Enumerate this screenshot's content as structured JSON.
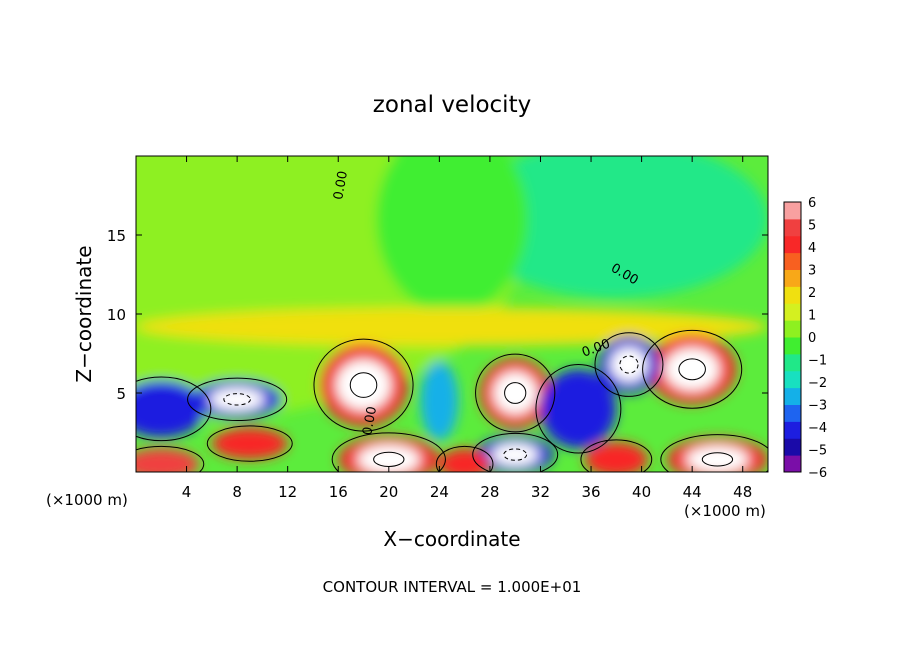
{
  "chart_data": {
    "type": "heatmap",
    "title": "zonal velocity",
    "xlabel": "X−coordinate",
    "ylabel": "Z−coordinate",
    "x_unit_left": "(×1000 m)",
    "x_unit_right": "(×1000 m)",
    "footer": "CONTOUR INTERVAL = 1.000E+01",
    "xlim": [
      0,
      50
    ],
    "ylim": [
      0,
      20
    ],
    "x_ticks": [
      4,
      8,
      12,
      16,
      20,
      24,
      28,
      32,
      36,
      40,
      44,
      48
    ],
    "y_ticks": [
      5,
      10,
      15
    ],
    "colorbar": {
      "min": -6,
      "max": 6,
      "ticks": [
        6,
        5,
        4,
        3,
        2,
        1,
        0,
        -1,
        -2,
        -3,
        -4,
        -5,
        -6
      ],
      "colors": [
        "#7a0ea8",
        "#1a0aa8",
        "#1d1ee0",
        "#1e64f0",
        "#14b0e8",
        "#18e0c0",
        "#20e888",
        "#40ee30",
        "#8ef020",
        "#d4f020",
        "#f0e010",
        "#f8a818",
        "#f86020",
        "#f82828",
        "#f04040",
        "#f8a0a0"
      ]
    },
    "contour_labels": [
      "0.00",
      "0.00",
      "0.00",
      "0.00",
      "0.00"
    ],
    "regions": [
      {
        "x": 0,
        "z": 13,
        "rx": 30,
        "rz": 10,
        "value": 0.6
      },
      {
        "x": 38,
        "z": 16,
        "rx": 12,
        "rz": 5,
        "value": -1.0
      },
      {
        "x": 25,
        "z": 16,
        "rx": 6,
        "rz": 6,
        "value": -0.5
      },
      {
        "x": 25,
        "z": 9.2,
        "rx": 25,
        "rz": 1.2,
        "value": 1.8
      },
      {
        "x": 18,
        "z": 5.5,
        "rx": 3.5,
        "rz": 2.6,
        "value": 8
      },
      {
        "x": 30,
        "z": 5,
        "rx": 2.8,
        "rz": 2.2,
        "value": 8
      },
      {
        "x": 44,
        "z": 6.5,
        "rx": 3.5,
        "rz": 2.2,
        "value": 8
      },
      {
        "x": 8,
        "z": 4.6,
        "rx": 3.5,
        "rz": 1.2,
        "value": -8
      },
      {
        "x": 39,
        "z": 6.8,
        "rx": 2.4,
        "rz": 1.8,
        "value": -8
      },
      {
        "x": 2,
        "z": 4,
        "rx": 3.5,
        "rz": 1.8,
        "value": -4
      },
      {
        "x": 35,
        "z": 4,
        "rx": 3,
        "rz": 2.5,
        "value": -4
      },
      {
        "x": 24,
        "z": 4.5,
        "rx": 1.5,
        "rz": 2.5,
        "value": -2.5
      },
      {
        "x": 20,
        "z": 0.8,
        "rx": 4,
        "rz": 1.5,
        "value": 7
      },
      {
        "x": 46,
        "z": 0.8,
        "rx": 4,
        "rz": 1.4,
        "value": 7
      },
      {
        "x": 30,
        "z": 1.1,
        "rx": 3,
        "rz": 1.2,
        "value": -7
      },
      {
        "x": 38,
        "z": 0.8,
        "rx": 2.5,
        "rz": 1.1,
        "value": 4
      },
      {
        "x": 26,
        "z": 0.5,
        "rx": 2,
        "rz": 1,
        "value": 4
      },
      {
        "x": 2,
        "z": 0.5,
        "rx": 3,
        "rz": 1,
        "value": 5
      },
      {
        "x": 9,
        "z": 1.8,
        "rx": 3,
        "rz": 1,
        "value": 4
      }
    ]
  }
}
